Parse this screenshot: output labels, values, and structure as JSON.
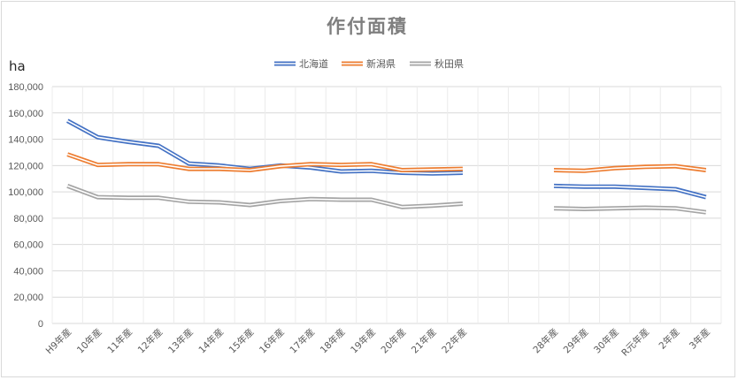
{
  "chart_data": {
    "type": "line",
    "title": "作付面積",
    "ylabel": "ha",
    "ylim": [
      0,
      180000
    ],
    "yticks": [
      0,
      20000,
      40000,
      60000,
      80000,
      100000,
      120000,
      140000,
      160000,
      180000
    ],
    "ytick_labels": [
      "0",
      "20,000",
      "40,000",
      "60,000",
      "80,000",
      "100,000",
      "120,000",
      "140,000",
      "160,000",
      "180,000"
    ],
    "categories": [
      "H9年産",
      "10年産",
      "11年産",
      "12年産",
      "13年産",
      "14年産",
      "15年産",
      "16年産",
      "17年産",
      "18年産",
      "19年産",
      "20年産",
      "21年産",
      "22年産",
      "",
      "",
      "28年産",
      "29年産",
      "30年産",
      "R元年産",
      "2年産",
      "3年産"
    ],
    "grid": true,
    "legend_position": "top",
    "series": [
      {
        "name": "北海道",
        "color": "#4472c4",
        "values": [
          154000,
          141500,
          138000,
          135000,
          121500,
          120000,
          117500,
          120000,
          118500,
          115500,
          116000,
          114500,
          114000,
          114500,
          null,
          null,
          104500,
          104000,
          104000,
          103000,
          102000,
          96000
        ]
      },
      {
        "name": "新潟県",
        "color": "#ed7d31",
        "values": [
          128500,
          120500,
          121000,
          121000,
          117500,
          117500,
          116500,
          119500,
          121000,
          120500,
          121000,
          116500,
          117000,
          117500,
          null,
          null,
          116500,
          116000,
          118000,
          119000,
          119500,
          116500
        ]
      },
      {
        "name": "秋田県",
        "color": "#a5a5a5",
        "values": [
          104500,
          96000,
          95500,
          95500,
          92500,
          92000,
          90000,
          93000,
          94500,
          94000,
          94000,
          88500,
          89500,
          91000,
          null,
          null,
          87500,
          87000,
          87500,
          88000,
          87500,
          84500
        ]
      }
    ]
  }
}
